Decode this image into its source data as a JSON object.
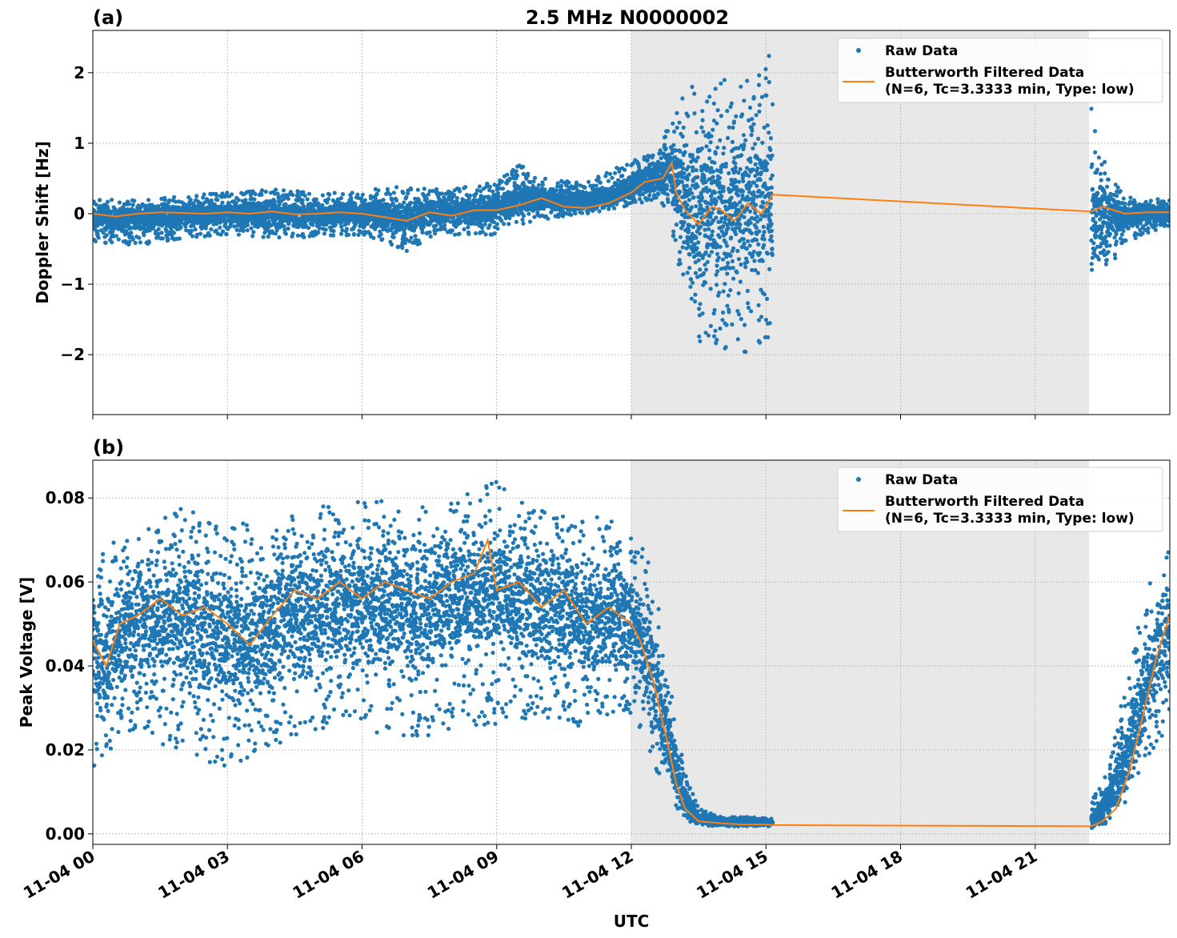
{
  "figure": {
    "title": "2.5 MHz N0000002",
    "xlabel": "UTC",
    "shared_x_ticks": [
      "11-04 00",
      "11-04 03",
      "11-04 06",
      "11-04 09",
      "11-04 12",
      "11-04 15",
      "11-04 18",
      "11-04 21"
    ]
  },
  "colors": {
    "raw": "#1f77b4",
    "filtered": "#ff7f0e",
    "shade": "#e8e8e8",
    "grid": "#b0b0b0"
  },
  "chart_data": [
    {
      "type": "scatter",
      "panel_label": "(a)",
      "ylabel": "Doppler Shift [Hz]",
      "xlim_hours": [
        0,
        24
      ],
      "ylim": [
        -2.85,
        2.6
      ],
      "yticks": [
        2,
        1,
        0,
        -1,
        -2
      ],
      "ytick_labels": [
        "2",
        "1",
        "0",
        "−1",
        "−2"
      ],
      "grid": true,
      "shaded_region_hours": [
        12.0,
        22.2
      ],
      "data_gap_hours": [
        15.15,
        22.25
      ],
      "legend": {
        "placement": "top-right",
        "entries": [
          "Raw Data",
          "Butterworth Filtered Data",
          "(N=6, Tc=3.3333 min, Type: low)"
        ]
      },
      "series": [
        {
          "name": "Raw Data",
          "kind": "scatter",
          "envelope": {
            "x": [
              0,
              1,
              2,
              3,
              4,
              5,
              6,
              6.5,
              7,
              7.5,
              8,
              9,
              9.5,
              10,
              11,
              11.5,
              12,
              12.5,
              12.8,
              13,
              13.5,
              14,
              14.5,
              15,
              15.15,
              22.25,
              22.5,
              23,
              24
            ],
            "low": [
              -0.4,
              -0.45,
              -0.35,
              -0.3,
              -0.35,
              -0.35,
              -0.3,
              -0.4,
              -0.55,
              -0.35,
              -0.3,
              -0.3,
              -0.15,
              -0.1,
              0.0,
              0.05,
              0.1,
              0.2,
              0.05,
              -0.6,
              -1.9,
              -1.9,
              -2.0,
              -1.8,
              -1.8,
              -1.5,
              -1.0,
              -0.4,
              -0.2
            ],
            "high": [
              0.2,
              0.2,
              0.25,
              0.3,
              0.35,
              0.3,
              0.3,
              0.4,
              0.4,
              0.35,
              0.35,
              0.45,
              0.7,
              0.5,
              0.45,
              0.6,
              0.75,
              0.9,
              1.2,
              1.6,
              1.9,
              1.9,
              2.0,
              2.2,
              2.3,
              1.5,
              0.8,
              0.25,
              0.2
            ]
          }
        },
        {
          "name": "Butterworth Filtered Data",
          "kind": "line",
          "x": [
            0,
            0.5,
            1,
            1.5,
            2,
            2.5,
            3,
            3.5,
            4,
            4.5,
            5,
            5.5,
            6,
            6.5,
            7,
            7.5,
            8,
            8.5,
            9,
            9.5,
            10,
            10.5,
            11,
            11.5,
            12,
            12.3,
            12.7,
            12.9,
            13.0,
            13.2,
            13.5,
            13.8,
            14.0,
            14.3,
            14.6,
            14.9,
            15.15,
            22.25,
            22.5,
            23,
            23.5,
            24
          ],
          "y": [
            0.0,
            -0.04,
            0.0,
            0.02,
            0.01,
            0.0,
            0.02,
            0.0,
            0.03,
            -0.01,
            0.0,
            0.02,
            0.0,
            -0.05,
            -0.1,
            0.02,
            -0.03,
            0.05,
            0.05,
            0.12,
            0.22,
            0.1,
            0.08,
            0.15,
            0.3,
            0.45,
            0.5,
            0.72,
            0.3,
            0.05,
            -0.15,
            0.1,
            0.05,
            -0.1,
            0.15,
            0.0,
            0.27,
            0.03,
            0.1,
            0.0,
            0.02,
            0.02
          ]
        }
      ]
    },
    {
      "type": "scatter",
      "panel_label": "(b)",
      "ylabel": "Peak Voltage [V]",
      "xlim_hours": [
        0,
        24
      ],
      "ylim": [
        -0.0025,
        0.089
      ],
      "yticks": [
        0.08,
        0.06,
        0.04,
        0.02,
        0.0
      ],
      "ytick_labels": [
        "0.08",
        "0.06",
        "0.04",
        "0.02",
        "0.00"
      ],
      "grid": true,
      "shaded_region_hours": [
        12.0,
        22.2
      ],
      "data_gap_hours": [
        15.15,
        22.25
      ],
      "legend": {
        "placement": "top-right",
        "entries": [
          "Raw Data",
          "Butterworth Filtered Data",
          "(N=6, Tc=3.3333 min, Type: low)"
        ]
      },
      "series": [
        {
          "name": "Raw Data",
          "kind": "scatter",
          "envelope": {
            "x": [
              0,
              0.5,
              1,
              2,
              3,
              4,
              5,
              6,
              7,
              8,
              9,
              10,
              11,
              11.5,
              12,
              12.3,
              12.6,
              12.9,
              13.2,
              13.5,
              14,
              14.5,
              15,
              15.15,
              22.25,
              22.5,
              23,
              23.5,
              24
            ],
            "low": [
              0.015,
              0.02,
              0.022,
              0.02,
              0.015,
              0.02,
              0.025,
              0.025,
              0.022,
              0.025,
              0.025,
              0.028,
              0.025,
              0.028,
              0.028,
              0.022,
              0.014,
              0.006,
              0.003,
              0.002,
              0.0018,
              0.0018,
              0.0018,
              0.0018,
              0.001,
              0.002,
              0.006,
              0.018,
              0.025
            ],
            "high": [
              0.065,
              0.07,
              0.074,
              0.078,
              0.074,
              0.074,
              0.078,
              0.08,
              0.079,
              0.08,
              0.084,
              0.078,
              0.075,
              0.076,
              0.073,
              0.068,
              0.055,
              0.035,
              0.015,
              0.006,
              0.004,
              0.004,
              0.004,
              0.004,
              0.008,
              0.012,
              0.035,
              0.06,
              0.07
            ]
          }
        },
        {
          "name": "Butterworth Filtered Data",
          "kind": "line",
          "x": [
            0,
            0.3,
            0.6,
            1,
            1.5,
            2,
            2.5,
            3,
            3.5,
            4,
            4.5,
            5,
            5.5,
            6,
            6.5,
            7,
            7.5,
            8,
            8.5,
            8.8,
            9,
            9.5,
            10,
            10.5,
            11,
            11.5,
            12,
            12.2,
            12.5,
            12.8,
            13.0,
            13.2,
            13.5,
            14,
            14.5,
            15,
            15.15,
            22.25,
            22.5,
            22.8,
            23.1,
            23.4,
            23.7,
            24
          ],
          "y": [
            0.046,
            0.04,
            0.05,
            0.052,
            0.056,
            0.052,
            0.054,
            0.05,
            0.045,
            0.052,
            0.058,
            0.056,
            0.06,
            0.056,
            0.06,
            0.058,
            0.056,
            0.06,
            0.062,
            0.07,
            0.058,
            0.06,
            0.054,
            0.058,
            0.05,
            0.054,
            0.05,
            0.046,
            0.036,
            0.022,
            0.012,
            0.006,
            0.003,
            0.0025,
            0.0022,
            0.0022,
            0.0021,
            0.0018,
            0.003,
            0.006,
            0.015,
            0.028,
            0.042,
            0.052
          ]
        }
      ]
    }
  ]
}
